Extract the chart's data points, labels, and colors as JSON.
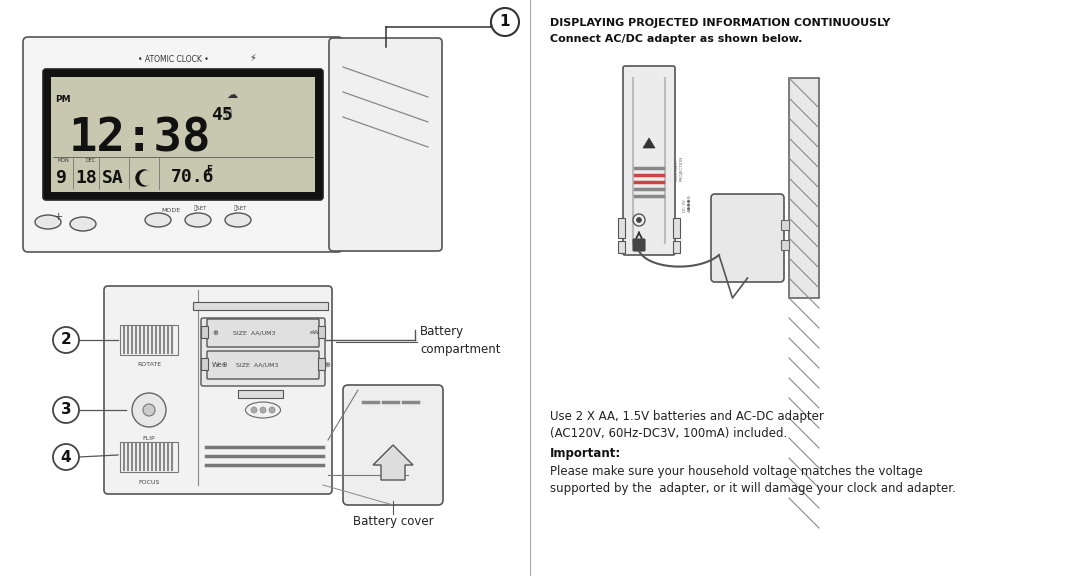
{
  "bg_color": "#ffffff",
  "right_panel": {
    "title_line1": "DISPLAYING PROJECTED INFORMATION CONTINUOUSLY",
    "title_line2": "Connect AC/DC adapter as shown below.",
    "body_line1": "Use 2 X AA, 1.5V batteries and AC-DC adapter",
    "body_line2": "(AC120V, 60Hz-DC3V, 100mA) included.",
    "important_label": "Important:",
    "warning_line1": "Please make sure your household voltage matches the voltage",
    "warning_line2": "supported by the  adapter, or it will damage your clock and adapter."
  }
}
